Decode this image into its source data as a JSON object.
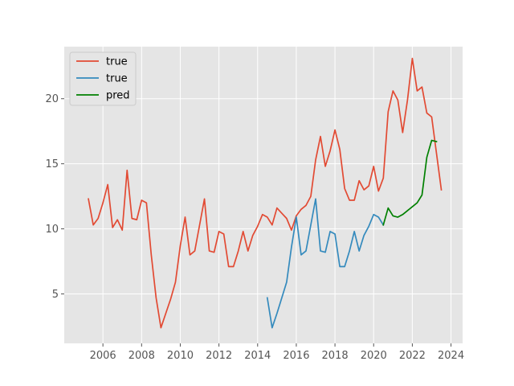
{
  "chart_data": {
    "type": "line",
    "title": "",
    "xlabel": "",
    "ylabel": "",
    "xlim": [
      2004.0,
      2024.6
    ],
    "ylim": [
      1.2,
      24.0
    ],
    "xticks": [
      2006,
      2008,
      2010,
      2012,
      2014,
      2016,
      2018,
      2020,
      2022,
      2024
    ],
    "xtick_labels": [
      "2006",
      "2008",
      "2010",
      "2012",
      "2014",
      "2016",
      "2018",
      "2020",
      "2022",
      "2024"
    ],
    "yticks": [
      5,
      10,
      15,
      20
    ],
    "ytick_labels": [
      "5",
      "10",
      "15",
      "20"
    ],
    "grid": true,
    "legend_position": "top-left",
    "series": [
      {
        "name": "true",
        "color": "#E24A33",
        "x": [
          2005.25,
          2005.5,
          2005.75,
          2006.0,
          2006.25,
          2006.5,
          2006.75,
          2007.0,
          2007.25,
          2007.5,
          2007.75,
          2008.0,
          2008.25,
          2008.5,
          2008.75,
          2009.0,
          2009.25,
          2009.5,
          2009.75,
          2010.0,
          2010.25,
          2010.5,
          2010.75,
          2011.0,
          2011.25,
          2011.5,
          2011.75,
          2012.0,
          2012.25,
          2012.5,
          2012.75,
          2013.0,
          2013.25,
          2013.5,
          2013.75,
          2014.0,
          2014.25,
          2014.5,
          2014.75,
          2015.0,
          2015.25,
          2015.5,
          2015.75,
          2016.0,
          2016.25,
          2016.5,
          2016.75,
          2017.0,
          2017.25,
          2017.5,
          2017.75,
          2018.0,
          2018.25,
          2018.5,
          2018.75,
          2019.0,
          2019.25,
          2019.5,
          2019.75,
          2020.0,
          2020.25,
          2020.5,
          2020.75,
          2021.0,
          2021.25,
          2021.5,
          2021.75,
          2022.0,
          2022.25,
          2022.5,
          2022.75,
          2023.0,
          2023.25,
          2023.5
        ],
        "values": [
          12.3,
          10.3,
          10.8,
          12.0,
          13.4,
          10.1,
          10.7,
          9.9,
          14.5,
          10.8,
          10.7,
          12.2,
          12.0,
          8.0,
          4.7,
          2.4,
          3.5,
          4.6,
          5.9,
          8.7,
          10.9,
          8.0,
          8.3,
          10.3,
          12.3,
          8.3,
          8.2,
          9.8,
          9.6,
          7.1,
          7.1,
          8.3,
          9.8,
          8.3,
          9.5,
          10.2,
          11.1,
          10.9,
          10.3,
          11.6,
          11.2,
          10.8,
          9.9,
          11.0,
          11.5,
          11.8,
          12.5,
          15.3,
          17.1,
          14.8,
          16.0,
          17.6,
          16.1,
          13.1,
          12.2,
          12.2,
          13.7,
          13.0,
          13.3,
          14.8,
          12.9,
          13.9,
          19.0,
          20.6,
          19.9,
          17.4,
          19.9,
          23.1,
          20.6,
          20.9,
          18.9,
          18.6,
          15.8,
          13.0
        ]
      },
      {
        "name": "true",
        "color": "#348ABD",
        "x": [
          2014.5,
          2014.75,
          2015.0,
          2015.25,
          2015.5,
          2015.75,
          2016.0,
          2016.25,
          2016.5,
          2016.75,
          2017.0,
          2017.25,
          2017.5,
          2017.75,
          2018.0,
          2018.25,
          2018.5,
          2018.75,
          2019.0,
          2019.25,
          2019.5,
          2019.75,
          2020.0,
          2020.25,
          2020.5
        ],
        "values": [
          4.7,
          2.4,
          3.5,
          4.7,
          5.9,
          8.6,
          10.9,
          8.0,
          8.3,
          10.3,
          12.3,
          8.3,
          8.2,
          9.8,
          9.6,
          7.1,
          7.1,
          8.3,
          9.8,
          8.3,
          9.5,
          10.2,
          11.1,
          10.9,
          10.3
        ]
      },
      {
        "name": "pred",
        "color": "#008000",
        "x": [
          2020.5,
          2020.75,
          2021.0,
          2021.25,
          2021.5,
          2021.75,
          2022.0,
          2022.25,
          2022.5,
          2022.75,
          2023.0,
          2023.25
        ],
        "values": [
          10.3,
          11.6,
          11.0,
          10.9,
          11.1,
          11.4,
          11.7,
          12.0,
          12.6,
          15.5,
          16.8,
          16.7
        ]
      }
    ]
  }
}
